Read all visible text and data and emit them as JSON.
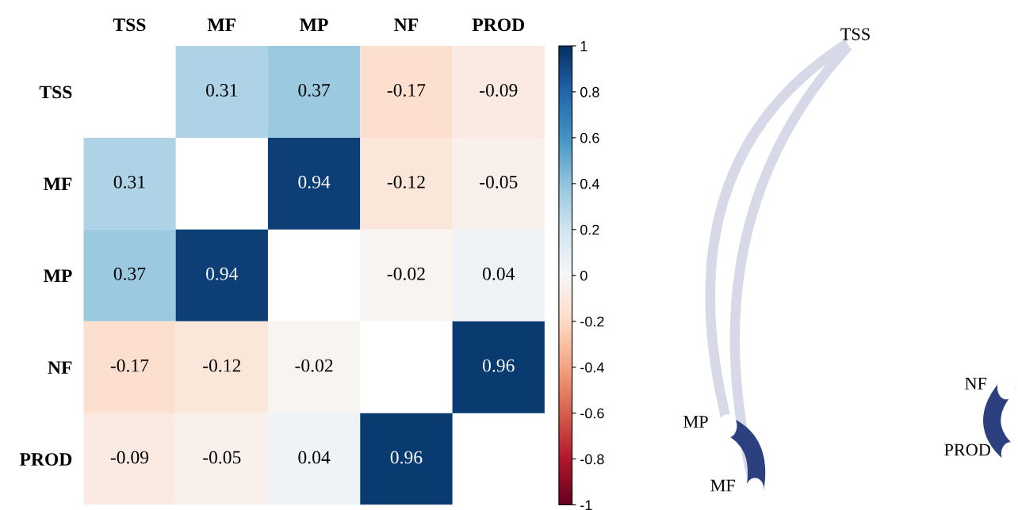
{
  "chart_data": [
    {
      "type": "heatmap",
      "categories": [
        "TSS",
        "MF",
        "MP",
        "NF",
        "PROD"
      ],
      "y_categories": [
        "TSS",
        "MF",
        "MP",
        "NF",
        "PROD"
      ],
      "cells": [
        [
          null,
          0.31,
          0.37,
          -0.17,
          -0.09
        ],
        [
          0.31,
          null,
          0.94,
          -0.12,
          -0.05
        ],
        [
          0.37,
          0.94,
          null,
          -0.02,
          0.04
        ],
        [
          -0.17,
          -0.12,
          -0.02,
          null,
          0.96
        ],
        [
          -0.09,
          -0.05,
          0.04,
          0.96,
          null
        ]
      ],
      "clim": [
        -1,
        1
      ],
      "cticks": [
        -1,
        -0.8,
        -0.6,
        -0.4,
        -0.2,
        0,
        0.2,
        0.4,
        0.6,
        0.8,
        1
      ],
      "data_labels": true
    },
    {
      "type": "other",
      "categories": [
        "TSS",
        "MF",
        "MP",
        "NF",
        "PROD"
      ]
    }
  ]
}
